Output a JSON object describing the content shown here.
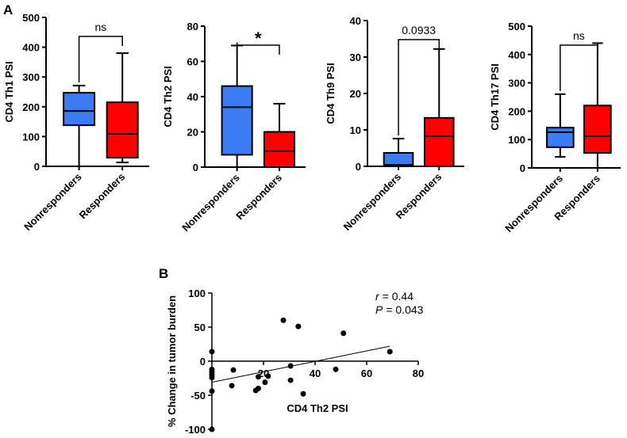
{
  "panel_labels": [
    "A",
    "B"
  ],
  "chart_data": [
    {
      "type": "box",
      "ylabel": "CD4 Th1 PSI",
      "categories": [
        "Nonresponders",
        "Responders"
      ],
      "colors": [
        "#3b7cf2",
        "#ff0000"
      ],
      "boxes": [
        {
          "min": 0,
          "q1": 138,
          "median": 186,
          "q3": 247,
          "max": 271
        },
        {
          "min": 13,
          "q1": 29,
          "median": 109,
          "q3": 215,
          "max": 380
        }
      ],
      "ylim": [
        0,
        500
      ],
      "yticks": [
        0,
        100,
        200,
        300,
        400,
        500
      ],
      "annotation": "ns"
    },
    {
      "type": "box",
      "ylabel": "CD4 Th2 PSI",
      "categories": [
        "Nonresponders",
        "Responders"
      ],
      "colors": [
        "#3b7cf2",
        "#ff0000"
      ],
      "boxes": [
        {
          "min": 0,
          "q1": 7,
          "median": 34,
          "q3": 46,
          "max": 69
        },
        {
          "min": 0,
          "q1": 0,
          "median": 9,
          "q3": 20,
          "max": 36
        }
      ],
      "ylim": [
        0,
        80
      ],
      "yticks": [
        0,
        20,
        40,
        60,
        80
      ],
      "annotation": "*"
    },
    {
      "type": "box",
      "ylabel": "CD4 Th9 PSI",
      "categories": [
        "Nonresponders",
        "Responders"
      ],
      "colors": [
        "#3b7cf2",
        "#ff0000"
      ],
      "boxes": [
        {
          "min": 0,
          "q1": 0,
          "median": 0.4,
          "q3": 3.7,
          "max": 7.6
        },
        {
          "min": 0,
          "q1": 0,
          "median": 8.3,
          "q3": 13.3,
          "max": 32.2
        }
      ],
      "ylim": [
        0,
        40
      ],
      "yticks": [
        0,
        10,
        20,
        30,
        40
      ],
      "annotation": "0.0933"
    },
    {
      "type": "box",
      "ylabel": "CD4 Th17 PSI",
      "categories": [
        "Nonresponders",
        "Responders"
      ],
      "colors": [
        "#3b7cf2",
        "#ff0000"
      ],
      "boxes": [
        {
          "min": 39,
          "q1": 73,
          "median": 126,
          "q3": 142,
          "max": 260
        },
        {
          "min": 0,
          "q1": 53,
          "median": 112,
          "q3": 220,
          "max": 440
        }
      ],
      "ylim": [
        0,
        500
      ],
      "yticks": [
        0,
        100,
        200,
        300,
        400,
        500
      ],
      "annotation": "ns"
    },
    {
      "type": "scatter",
      "xlabel": "CD4 Th2 PSI",
      "ylabel": "% Change in tumor burden",
      "x": [
        0,
        0,
        0,
        0,
        0,
        0,
        0,
        8.3,
        7.7,
        17,
        18,
        18,
        20.6,
        27.7,
        21.8,
        30.5,
        30.5,
        33.5,
        35.4,
        48,
        51,
        69
      ],
      "y": [
        14,
        -12,
        -16,
        -20,
        -24,
        -44,
        -100,
        -13,
        -36,
        -43,
        -40,
        -23,
        -31,
        60,
        -22,
        -7,
        -28,
        51,
        -48,
        -12,
        41,
        14
      ],
      "xlim": [
        0,
        80
      ],
      "ylim": [
        -100,
        100
      ],
      "xticks": [
        20,
        40,
        60,
        80
      ],
      "yticks": [
        -100,
        -50,
        0,
        50,
        100
      ],
      "color": "#000000",
      "trendline": {
        "x": [
          0,
          69
        ],
        "y": [
          -31,
          22
        ]
      },
      "stats": [
        {
          "symbol": "r",
          "text": "= 0.44"
        },
        {
          "symbol": "P",
          "text": "= 0.043"
        }
      ]
    }
  ]
}
